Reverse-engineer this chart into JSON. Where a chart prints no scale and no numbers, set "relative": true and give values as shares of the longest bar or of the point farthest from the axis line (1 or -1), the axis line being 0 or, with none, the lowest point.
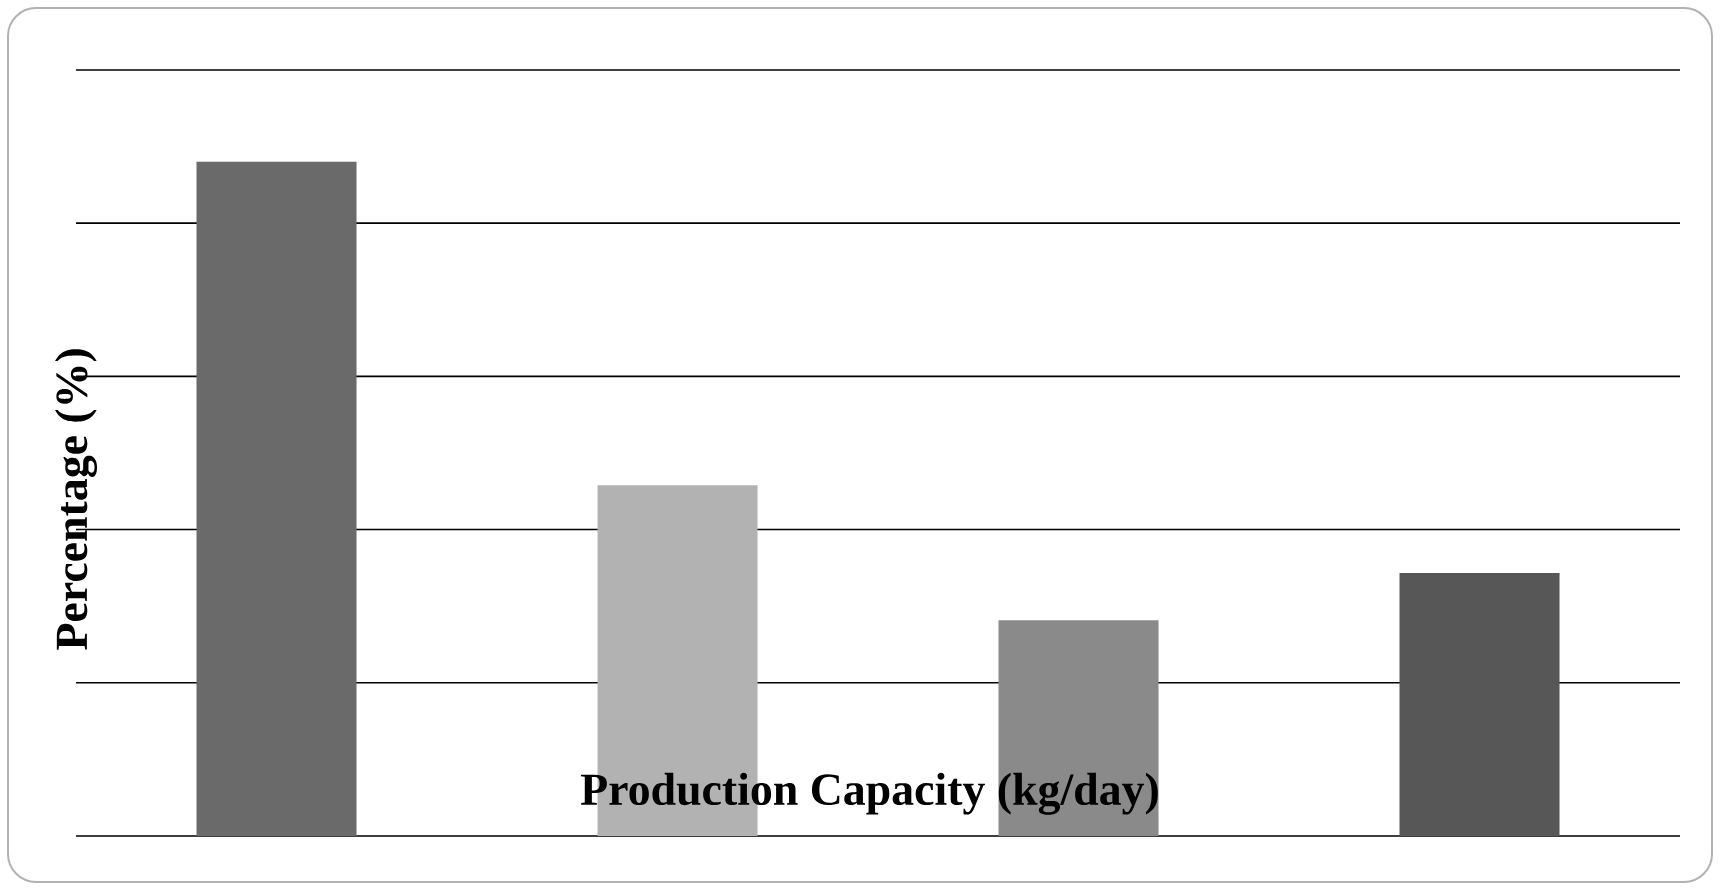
{
  "chart_data": {
    "type": "bar",
    "xlabel": "Production Capacity (kg/day)",
    "ylabel": "Percentage (%)",
    "categories": [
      null,
      null,
      null,
      null
    ],
    "values": [
      1,
      0.52,
      0.32,
      0.39
    ],
    "colors": [
      "#6a6a6a",
      "#b2b2b2",
      "#8a8a8a",
      "#575757"
    ],
    "relative": true,
    "grid": "y"
  }
}
